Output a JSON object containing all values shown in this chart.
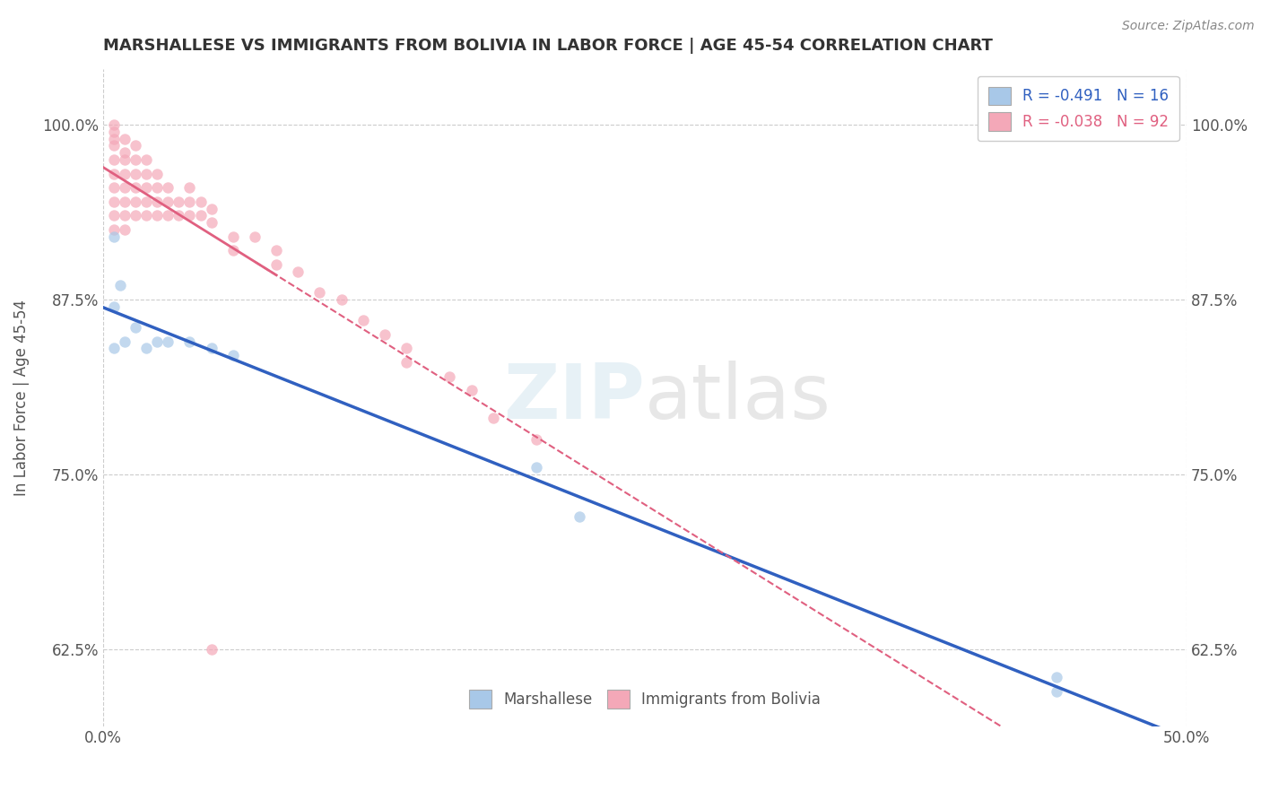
{
  "title": "MARSHALLESE VS IMMIGRANTS FROM BOLIVIA IN LABOR FORCE | AGE 45-54 CORRELATION CHART",
  "source": "Source: ZipAtlas.com",
  "ylabel": "In Labor Force | Age 45-54",
  "yticks": [
    "62.5%",
    "75.0%",
    "87.5%",
    "100.0%"
  ],
  "ytick_vals": [
    0.625,
    0.75,
    0.875,
    1.0
  ],
  "xlim": [
    0.0,
    0.5
  ],
  "ylim": [
    0.57,
    1.04
  ],
  "blue_R": -0.491,
  "blue_N": 16,
  "pink_R": -0.038,
  "pink_N": 92,
  "legend_label_blue": "Marshallese",
  "legend_label_pink": "Immigrants from Bolivia",
  "blue_color": "#a8c8e8",
  "pink_color": "#f4a8b8",
  "blue_line_color": "#3060c0",
  "pink_line_color": "#e06080",
  "watermark": "ZIPatlas",
  "blue_points_x": [
    0.005,
    0.005,
    0.005,
    0.008,
    0.01,
    0.015,
    0.02,
    0.025,
    0.03,
    0.04,
    0.05,
    0.06,
    0.2,
    0.22,
    0.44,
    0.44
  ],
  "blue_points_y": [
    0.92,
    0.87,
    0.84,
    0.885,
    0.845,
    0.855,
    0.84,
    0.845,
    0.845,
    0.845,
    0.84,
    0.835,
    0.755,
    0.72,
    0.605,
    0.595
  ],
  "pink_points_x": [
    0.005,
    0.005,
    0.005,
    0.005,
    0.005,
    0.005,
    0.005,
    0.005,
    0.005,
    0.005,
    0.01,
    0.01,
    0.01,
    0.01,
    0.01,
    0.01,
    0.01,
    0.01,
    0.015,
    0.015,
    0.015,
    0.015,
    0.015,
    0.015,
    0.02,
    0.02,
    0.02,
    0.02,
    0.02,
    0.025,
    0.025,
    0.025,
    0.025,
    0.03,
    0.03,
    0.03,
    0.035,
    0.035,
    0.04,
    0.04,
    0.04,
    0.045,
    0.045,
    0.05,
    0.05,
    0.06,
    0.06,
    0.07,
    0.08,
    0.08,
    0.09,
    0.1,
    0.11,
    0.12,
    0.13,
    0.14,
    0.14,
    0.16,
    0.17,
    0.18,
    0.2,
    0.05
  ],
  "pink_points_y": [
    1.0,
    0.995,
    0.99,
    0.985,
    0.975,
    0.965,
    0.955,
    0.945,
    0.935,
    0.925,
    0.99,
    0.98,
    0.975,
    0.965,
    0.955,
    0.945,
    0.935,
    0.925,
    0.985,
    0.975,
    0.965,
    0.955,
    0.945,
    0.935,
    0.975,
    0.965,
    0.955,
    0.945,
    0.935,
    0.965,
    0.955,
    0.945,
    0.935,
    0.955,
    0.945,
    0.935,
    0.945,
    0.935,
    0.955,
    0.945,
    0.935,
    0.945,
    0.935,
    0.94,
    0.93,
    0.92,
    0.91,
    0.92,
    0.91,
    0.9,
    0.895,
    0.88,
    0.875,
    0.86,
    0.85,
    0.84,
    0.83,
    0.82,
    0.81,
    0.79,
    0.775,
    0.625
  ]
}
